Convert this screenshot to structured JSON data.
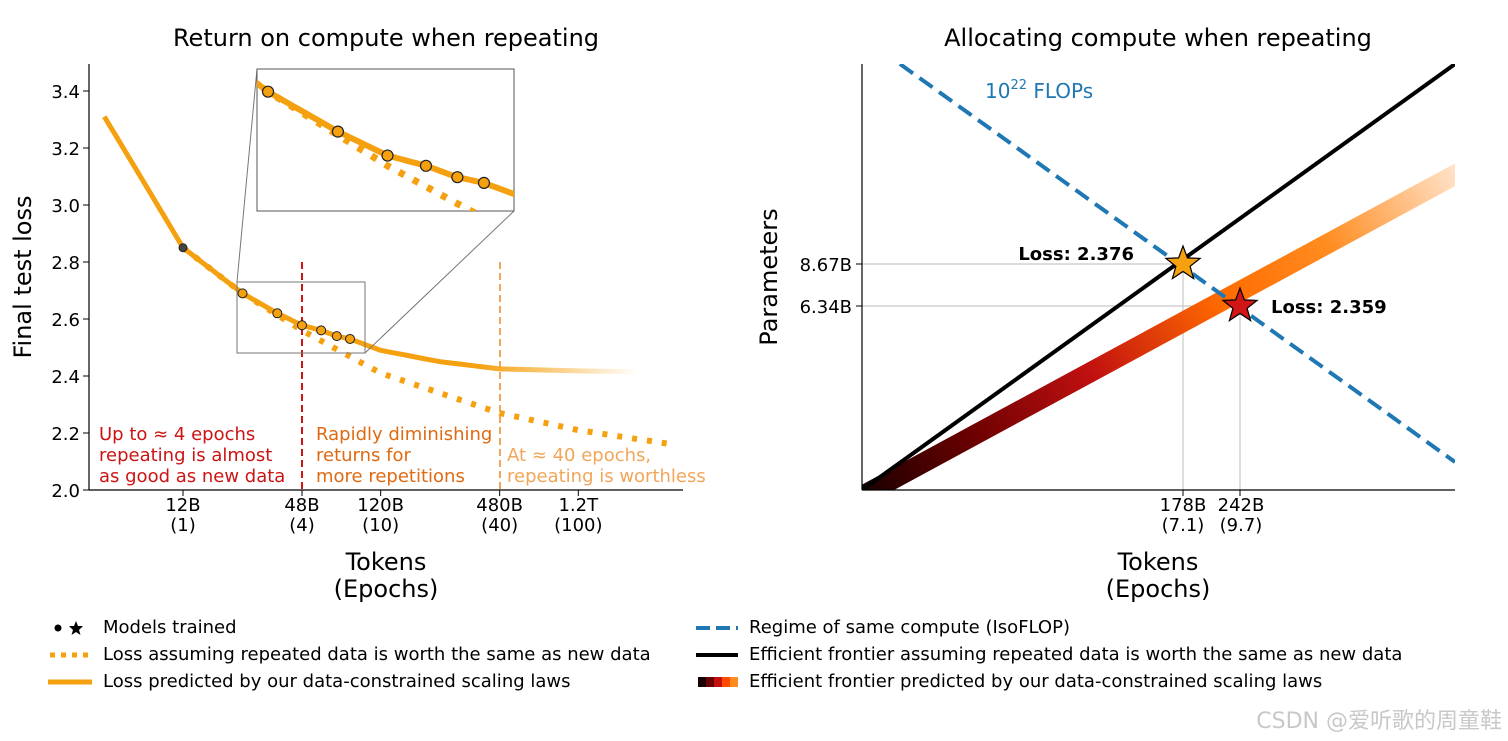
{
  "chart_data": [
    {
      "type": "line",
      "title": "Return on compute when repeating",
      "xlabel_line1": "Tokens",
      "xlabel_line2": "(Epochs)",
      "ylabel": "Final test loss",
      "ylim": [
        2.0,
        3.5
      ],
      "yticks": [
        "2.0",
        "2.2",
        "2.4",
        "2.6",
        "2.8",
        "3.0",
        "3.2",
        "3.4"
      ],
      "xticks": [
        {
          "token": "12B",
          "epochs": "(1)",
          "epochs_value": 1
        },
        {
          "token": "48B",
          "epochs": "(4)",
          "epochs_value": 4
        },
        {
          "token": "120B",
          "epochs": "(10)",
          "epochs_value": 10
        },
        {
          "token": "480B",
          "epochs": "(40)",
          "epochs_value": 40
        },
        {
          "token": "1.2T",
          "epochs": "(100)",
          "epochs_value": 100
        }
      ],
      "series": [
        {
          "name": "Loss predicted by our data-constrained scaling laws",
          "points": [
            [
              0.4,
              3.31
            ],
            [
              0.7,
              3.03
            ],
            [
              1,
              2.85
            ],
            [
              2,
              2.69
            ],
            [
              3,
              2.62
            ],
            [
              4,
              2.578
            ],
            [
              5,
              2.56
            ],
            [
              6,
              2.54
            ],
            [
              7,
              2.53
            ],
            [
              10,
              2.49
            ],
            [
              20,
              2.45
            ],
            [
              40,
              2.425
            ],
            [
              100,
              2.418
            ],
            [
              200,
              2.415
            ]
          ]
        },
        {
          "name": "Loss assuming repeated data is worth the same as new data",
          "points": [
            [
              1,
              2.85
            ],
            [
              2,
              2.69
            ],
            [
              4,
              2.56
            ],
            [
              10,
              2.41
            ],
            [
              40,
              2.27
            ],
            [
              100,
              2.21
            ],
            [
              300,
              2.16
            ]
          ]
        }
      ],
      "models_trained": [
        {
          "epochs": 1,
          "loss": 2.85
        },
        {
          "epochs": 2,
          "loss": 2.69
        },
        {
          "epochs": 3,
          "loss": 2.62
        },
        {
          "epochs": 4,
          "loss": 2.578
        },
        {
          "epochs": 5,
          "loss": 2.56
        },
        {
          "epochs": 6,
          "loss": 2.54
        },
        {
          "epochs": 7,
          "loss": 2.53
        }
      ],
      "vlines_epochs": [
        4,
        40
      ],
      "annotations": {
        "a1": [
          "Up to ≈ 4 epochs",
          "repeating is almost",
          "as good as new data"
        ],
        "a2": [
          "Rapidly diminishing",
          "returns for",
          "more repetitions"
        ],
        "a3": [
          "At ≈ 40 epochs,",
          "repeating is worthless"
        ]
      },
      "colors": {
        "predicted": "#f5a00f",
        "annot1": "#cc1414",
        "annot2": "#e06a12",
        "annot3": "#f2a65a"
      }
    },
    {
      "type": "line",
      "title": "Allocating compute when repeating",
      "xlabel_line1": "Tokens",
      "xlabel_line2": "(Epochs)",
      "ylabel": "Parameters",
      "isoflop_label_base": "10",
      "isoflop_label_exp": "22",
      "isoflop_label_unit": " FLOPs",
      "yticks": [
        "8.67B",
        "6.34B"
      ],
      "xticks": [
        {
          "token": "178B",
          "epochs": "(7.1)"
        },
        {
          "token": "242B",
          "epochs": "(9.7)"
        }
      ],
      "points": [
        {
          "name": "star-orange",
          "tokens_B": 178,
          "params_B": 8.67,
          "label": "Loss: 2.376",
          "color": "#f5a00f"
        },
        {
          "name": "star-red",
          "tokens_B": 242,
          "params_B": 6.34,
          "label": "Loss: 2.359",
          "color": "#d01616"
        }
      ],
      "colors": {
        "isoflop": "#1f77b4",
        "frontier": "#000000"
      }
    }
  ],
  "legend": {
    "left": [
      {
        "icon": "dot-star",
        "label": "Models trained"
      },
      {
        "icon": "dotted-orange",
        "label": "Loss assuming repeated data is worth the same as new data"
      },
      {
        "icon": "solid-orange",
        "label": "Loss predicted by our data-constrained scaling laws"
      }
    ],
    "right": [
      {
        "icon": "dashed-blue",
        "label": "Regime of same compute (IsoFLOP)"
      },
      {
        "icon": "solid-black",
        "label": "Efficient frontier assuming repeated data is worth the same as new data"
      },
      {
        "icon": "gradient",
        "label": "Efficient frontier predicted by our data-constrained scaling laws"
      }
    ]
  },
  "watermark": "CSDN @爱听歌的周童鞋"
}
